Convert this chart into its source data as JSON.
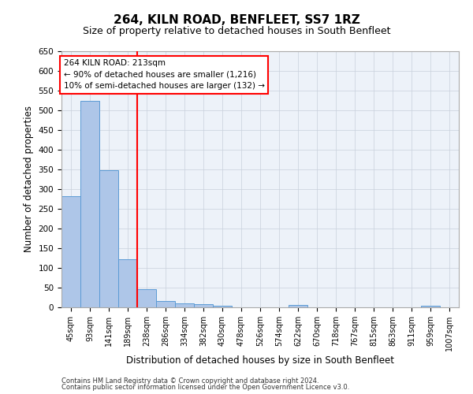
{
  "title1": "264, KILN ROAD, BENFLEET, SS7 1RZ",
  "title2": "Size of property relative to detached houses in South Benfleet",
  "xlabel": "Distribution of detached houses by size in South Benfleet",
  "ylabel": "Number of detached properties",
  "footer1": "Contains HM Land Registry data © Crown copyright and database right 2024.",
  "footer2": "Contains public sector information licensed under the Open Government Licence v3.0.",
  "categories": [
    "45sqm",
    "93sqm",
    "141sqm",
    "189sqm",
    "238sqm",
    "286sqm",
    "334sqm",
    "382sqm",
    "430sqm",
    "478sqm",
    "526sqm",
    "574sqm",
    "622sqm",
    "670sqm",
    "718sqm",
    "767sqm",
    "815sqm",
    "863sqm",
    "911sqm",
    "959sqm",
    "1007sqm"
  ],
  "values": [
    282,
    524,
    348,
    122,
    47,
    17,
    11,
    8,
    5,
    0,
    0,
    0,
    7,
    0,
    0,
    0,
    0,
    0,
    0,
    5,
    0
  ],
  "bar_color": "#aec6e8",
  "bar_edge_color": "#5b9bd5",
  "grid_color": "#c8d0dc",
  "vline_x": 3.5,
  "vline_color": "red",
  "annotation_text": "264 KILN ROAD: 213sqm\n← 90% of detached houses are smaller (1,216)\n10% of semi-detached houses are larger (132) →",
  "annotation_box_color": "white",
  "annotation_box_edge": "red",
  "ylim": [
    0,
    650
  ],
  "yticks": [
    0,
    50,
    100,
    150,
    200,
    250,
    300,
    350,
    400,
    450,
    500,
    550,
    600,
    650
  ],
  "bg_color": "#edf2f9",
  "title1_fontsize": 11,
  "title2_fontsize": 9
}
